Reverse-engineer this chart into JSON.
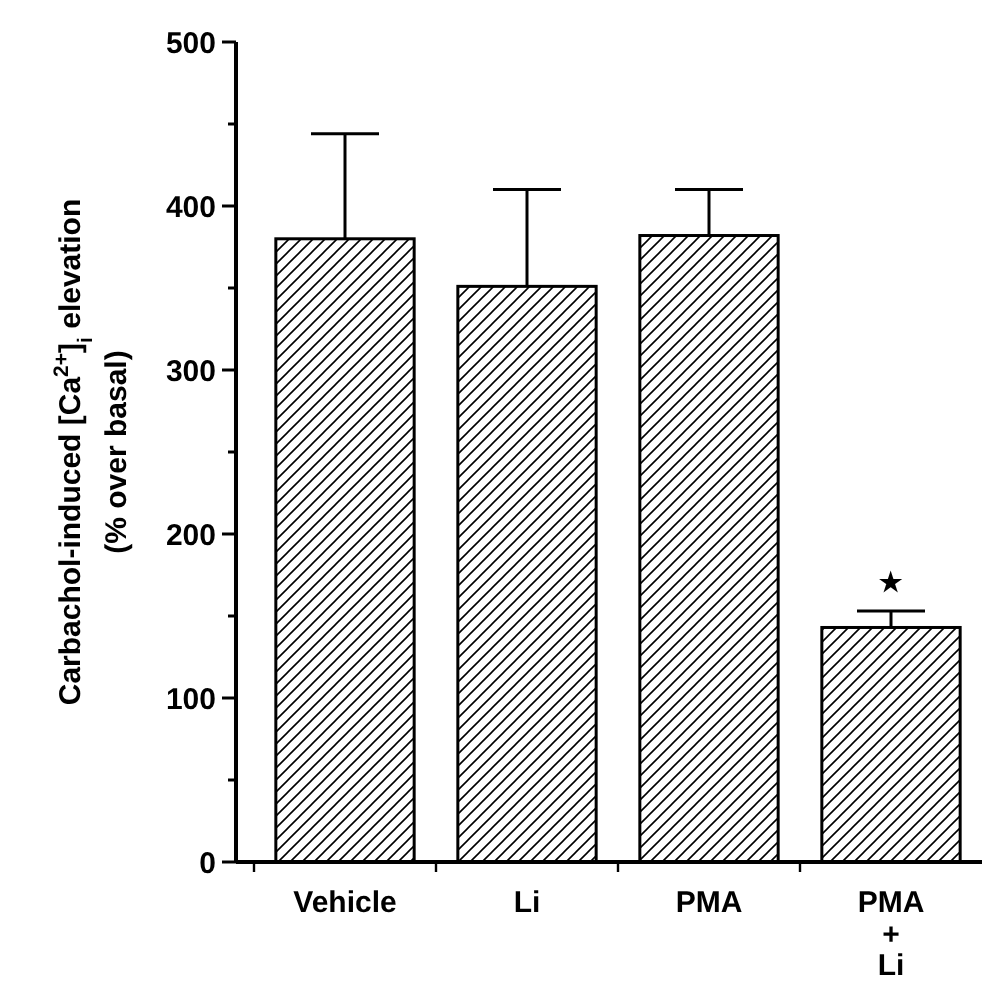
{
  "chart_data": {
    "type": "bar",
    "ylabel": "Carbachol-induced [Ca$^{2+}$]$_{i}$ elevation\n(% over basal)",
    "categories": [
      "Vehicle",
      "Li",
      "PMA",
      "PMA\n+\nLi"
    ],
    "values": [
      380,
      351,
      382,
      143
    ],
    "errors": [
      [
        380,
        444
      ],
      [
        351,
        410
      ],
      [
        382,
        410
      ],
      [
        143,
        153
      ]
    ],
    "color": "#000000",
    "ylim": [
      0,
      500
    ],
    "yticks": [
      0,
      {
        "value": 50,
        "label": null
      },
      100,
      {
        "value": 150,
        "label": null
      },
      200,
      {
        "value": 250,
        "label": null
      },
      300,
      {
        "value": 350,
        "label": null
      },
      400,
      {
        "value": 450,
        "label": null
      },
      500
    ],
    "annotations": [
      "★"
    ]
  }
}
